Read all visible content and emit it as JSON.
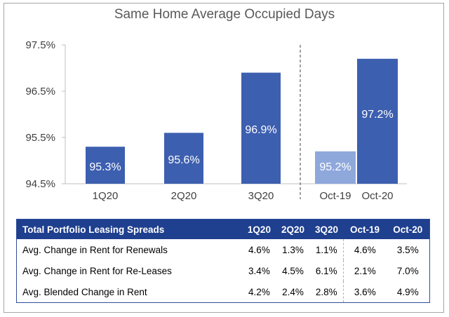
{
  "chart_data": {
    "type": "bar",
    "title": "Same Home Average Occupied Days",
    "categories": [
      "1Q20",
      "2Q20",
      "3Q20",
      "Oct-19",
      "Oct-20"
    ],
    "values": [
      95.3,
      95.6,
      96.9,
      95.2,
      97.2
    ],
    "data_labels": [
      "95.3%",
      "95.6%",
      "96.9%",
      "95.2%",
      "97.2%"
    ],
    "yticks": [
      "97.5%",
      "96.5%",
      "95.5%",
      "94.5%"
    ],
    "ytick_values": [
      97.5,
      96.5,
      95.5,
      94.5
    ],
    "ylim": [
      94.5,
      97.5
    ],
    "bar_colors": [
      "#3d5fb0",
      "#3d5fb0",
      "#3d5fb0",
      "#8fa8dc",
      "#3d5fb0"
    ],
    "grid": false
  },
  "table": {
    "headers": [
      "Total Portfolio Leasing Spreads",
      "1Q20",
      "2Q20",
      "3Q20",
      "Oct-19",
      "Oct-20"
    ],
    "rows": [
      [
        "Avg. Change in Rent for Renewals",
        "4.6%",
        "1.3%",
        "1.1%",
        "4.6%",
        "3.5%"
      ],
      [
        "Avg. Change in Rent for Re-Leases",
        "3.4%",
        "4.5%",
        "6.1%",
        "2.1%",
        "7.0%"
      ],
      [
        "Avg. Blended Change in Rent",
        "4.2%",
        "2.4%",
        "2.8%",
        "3.6%",
        "4.9%"
      ]
    ]
  },
  "colors": {
    "bar": "#3d5fb0",
    "bar_light": "#8fa8dc",
    "header": "#1f3f8f"
  }
}
